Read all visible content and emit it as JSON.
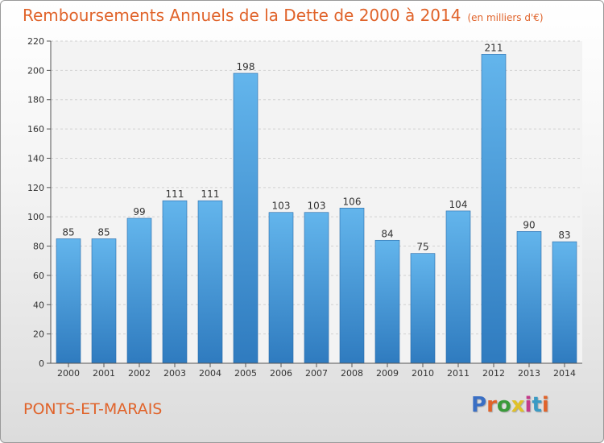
{
  "page": {
    "commune": "PONTS-ET-MARAIS",
    "logo": "Proxiti",
    "logo_colors": [
      "#3a6fc4",
      "#e0632a",
      "#3a9a3a",
      "#e0c12a",
      "#c43a8a",
      "#3a9ac4",
      "#e0632a"
    ]
  },
  "chart_data": {
    "type": "bar",
    "title": "Remboursements Annuels de la Dette de 2000 à 2014",
    "subtitle": "(en milliers d'€)",
    "xlabel": "",
    "ylabel": "",
    "ylim": [
      0,
      220
    ],
    "yticks": [
      0,
      20,
      40,
      60,
      80,
      100,
      120,
      140,
      160,
      180,
      200,
      220
    ],
    "grid": true,
    "categories": [
      "2000",
      "2001",
      "2002",
      "2003",
      "2004",
      "2005",
      "2006",
      "2007",
      "2008",
      "2009",
      "2010",
      "2011",
      "2012",
      "2013",
      "2014"
    ],
    "values": [
      85,
      85,
      99,
      111,
      111,
      198,
      103,
      103,
      106,
      84,
      75,
      104,
      211,
      90,
      83
    ],
    "colors": {
      "bar_light": "#63b5ec",
      "bar_dark": "#2f7bbf",
      "title": "#e0632a"
    }
  }
}
